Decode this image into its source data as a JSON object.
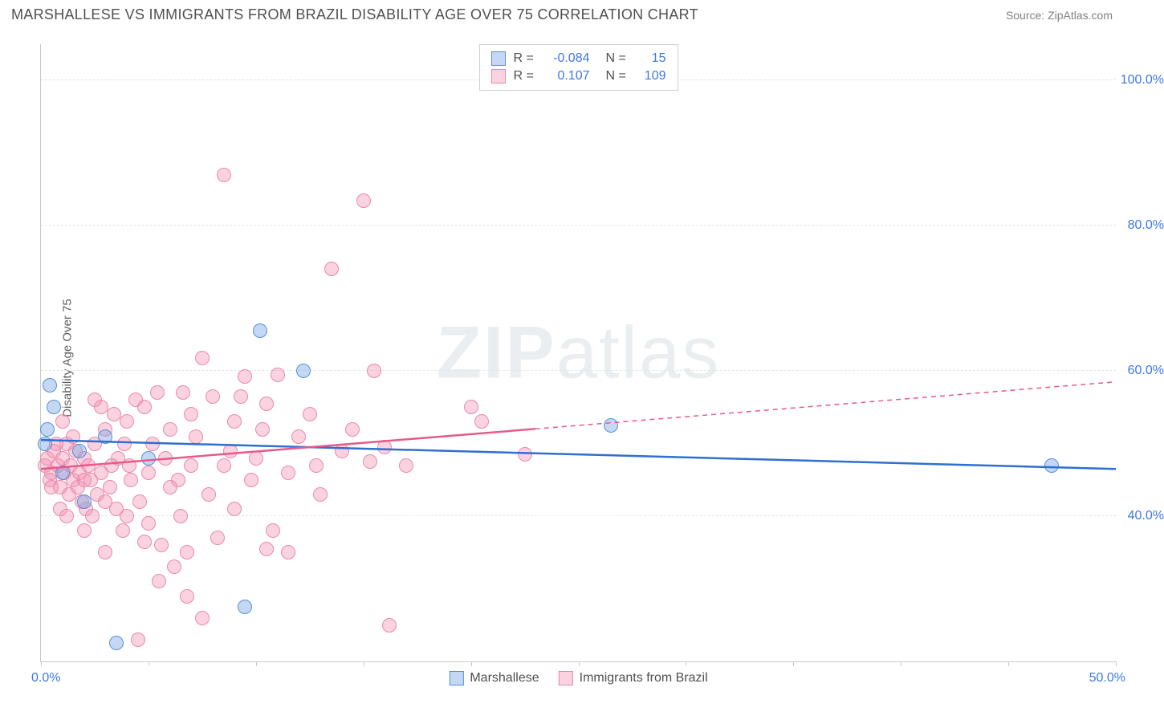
{
  "title": "MARSHALLESE VS IMMIGRANTS FROM BRAZIL DISABILITY AGE OVER 75 CORRELATION CHART",
  "source": "Source: ZipAtlas.com",
  "ylabel": "Disability Age Over 75",
  "watermark_bold": "ZIP",
  "watermark_light": "atlas",
  "xaxis": {
    "min_label": "0.0%",
    "max_label": "50.0%",
    "min": 0,
    "max": 50,
    "ticks": [
      0,
      5,
      10,
      15,
      20,
      25,
      30,
      35,
      40,
      45,
      50
    ]
  },
  "yaxis": {
    "min": 20,
    "max": 105,
    "gridlines": [
      {
        "v": 40,
        "label": "40.0%"
      },
      {
        "v": 60,
        "label": "60.0%"
      },
      {
        "v": 80,
        "label": "80.0%"
      },
      {
        "v": 100,
        "label": "100.0%"
      }
    ]
  },
  "series": [
    {
      "name": "Marshallese",
      "fill": "rgba(124,169,230,0.45)",
      "stroke": "#5a8fd6",
      "line_color": "#2f6fd0",
      "r_value": "-0.084",
      "n_value": "15",
      "marker_r": 9,
      "trend": {
        "x1_data": 0,
        "y1": 50.5,
        "x2_data": 50,
        "y2": 46.5,
        "x_solid_end": 50
      },
      "points": [
        {
          "x": 0.4,
          "y": 58
        },
        {
          "x": 0.6,
          "y": 55
        },
        {
          "x": 0.2,
          "y": 50
        },
        {
          "x": 1.8,
          "y": 49
        },
        {
          "x": 10.2,
          "y": 65.5
        },
        {
          "x": 12.2,
          "y": 60.0
        },
        {
          "x": 3.5,
          "y": 22.5
        },
        {
          "x": 9.5,
          "y": 27.5
        },
        {
          "x": 26.5,
          "y": 52.5
        },
        {
          "x": 47.0,
          "y": 47.0
        },
        {
          "x": 1.0,
          "y": 46
        },
        {
          "x": 2.0,
          "y": 42
        },
        {
          "x": 0.3,
          "y": 52
        },
        {
          "x": 3.0,
          "y": 51
        },
        {
          "x": 5.0,
          "y": 48
        }
      ]
    },
    {
      "name": "Immigrants from Brazil",
      "fill": "rgba(244,143,177,0.40)",
      "stroke": "#e88aa8",
      "line_color": "#e65a8a",
      "r_value": "0.107",
      "n_value": "109",
      "marker_r": 9,
      "trend": {
        "x1_data": 0,
        "y1": 46.5,
        "x2_data": 50,
        "y2": 58.5,
        "x_solid_end": 23
      },
      "points": [
        {
          "x": 0.2,
          "y": 47
        },
        {
          "x": 0.3,
          "y": 48
        },
        {
          "x": 0.5,
          "y": 46
        },
        {
          "x": 0.6,
          "y": 49
        },
        {
          "x": 0.4,
          "y": 45
        },
        {
          "x": 0.8,
          "y": 47
        },
        {
          "x": 0.9,
          "y": 44
        },
        {
          "x": 1.0,
          "y": 48
        },
        {
          "x": 1.1,
          "y": 46
        },
        {
          "x": 1.2,
          "y": 50
        },
        {
          "x": 1.3,
          "y": 43
        },
        {
          "x": 1.4,
          "y": 47
        },
        {
          "x": 1.5,
          "y": 45
        },
        {
          "x": 1.6,
          "y": 49
        },
        {
          "x": 1.7,
          "y": 44
        },
        {
          "x": 1.8,
          "y": 46
        },
        {
          "x": 1.9,
          "y": 42
        },
        {
          "x": 2.0,
          "y": 48
        },
        {
          "x": 2.1,
          "y": 41
        },
        {
          "x": 2.2,
          "y": 47
        },
        {
          "x": 2.3,
          "y": 45
        },
        {
          "x": 2.4,
          "y": 40
        },
        {
          "x": 2.5,
          "y": 50
        },
        {
          "x": 2.6,
          "y": 43
        },
        {
          "x": 2.8,
          "y": 46
        },
        {
          "x": 3.0,
          "y": 52
        },
        {
          "x": 3.2,
          "y": 44
        },
        {
          "x": 3.4,
          "y": 54
        },
        {
          "x": 3.5,
          "y": 41
        },
        {
          "x": 3.6,
          "y": 48
        },
        {
          "x": 3.8,
          "y": 38
        },
        {
          "x": 4.0,
          "y": 53
        },
        {
          "x": 4.2,
          "y": 45
        },
        {
          "x": 4.4,
          "y": 56
        },
        {
          "x": 4.6,
          "y": 42
        },
        {
          "x": 4.8,
          "y": 55
        },
        {
          "x": 5.0,
          "y": 39
        },
        {
          "x": 5.2,
          "y": 50
        },
        {
          "x": 5.4,
          "y": 57
        },
        {
          "x": 5.6,
          "y": 36
        },
        {
          "x": 5.8,
          "y": 48
        },
        {
          "x": 6.0,
          "y": 52
        },
        {
          "x": 6.2,
          "y": 33
        },
        {
          "x": 6.4,
          "y": 45
        },
        {
          "x": 6.6,
          "y": 57
        },
        {
          "x": 6.8,
          "y": 29
        },
        {
          "x": 7.0,
          "y": 47
        },
        {
          "x": 7.2,
          "y": 51
        },
        {
          "x": 7.5,
          "y": 61.8
        },
        {
          "x": 7.8,
          "y": 43
        },
        {
          "x": 8.0,
          "y": 56.5
        },
        {
          "x": 8.2,
          "y": 37
        },
        {
          "x": 8.5,
          "y": 87.0
        },
        {
          "x": 8.8,
          "y": 49
        },
        {
          "x": 9.0,
          "y": 53
        },
        {
          "x": 9.3,
          "y": 56.5
        },
        {
          "x": 9.5,
          "y": 59.2
        },
        {
          "x": 9.8,
          "y": 45
        },
        {
          "x": 10.0,
          "y": 48
        },
        {
          "x": 10.3,
          "y": 52
        },
        {
          "x": 10.5,
          "y": 55.5
        },
        {
          "x": 10.8,
          "y": 38
        },
        {
          "x": 11.0,
          "y": 59.5
        },
        {
          "x": 11.5,
          "y": 35
        },
        {
          "x": 12.0,
          "y": 51
        },
        {
          "x": 12.5,
          "y": 54
        },
        {
          "x": 12.8,
          "y": 47
        },
        {
          "x": 13.0,
          "y": 43
        },
        {
          "x": 13.5,
          "y": 74.0
        },
        {
          "x": 14.0,
          "y": 49
        },
        {
          "x": 14.5,
          "y": 52
        },
        {
          "x": 15.0,
          "y": 83.5
        },
        {
          "x": 15.3,
          "y": 47.5
        },
        {
          "x": 15.5,
          "y": 60.0
        },
        {
          "x": 16.0,
          "y": 49.5
        },
        {
          "x": 16.2,
          "y": 25.0
        },
        {
          "x": 17.0,
          "y": 47
        },
        {
          "x": 20.0,
          "y": 55
        },
        {
          "x": 20.5,
          "y": 53
        },
        {
          "x": 22.5,
          "y": 48.5
        },
        {
          "x": 4.5,
          "y": 23
        },
        {
          "x": 3.0,
          "y": 35
        },
        {
          "x": 5.5,
          "y": 31
        },
        {
          "x": 6.5,
          "y": 40
        },
        {
          "x": 7.5,
          "y": 26
        },
        {
          "x": 2.0,
          "y": 38
        },
        {
          "x": 1.5,
          "y": 51
        },
        {
          "x": 0.7,
          "y": 50
        },
        {
          "x": 2.8,
          "y": 55
        },
        {
          "x": 3.9,
          "y": 50
        },
        {
          "x": 4.1,
          "y": 47
        },
        {
          "x": 1.0,
          "y": 53
        },
        {
          "x": 2.5,
          "y": 56
        },
        {
          "x": 3.3,
          "y": 47
        },
        {
          "x": 0.5,
          "y": 44
        },
        {
          "x": 1.2,
          "y": 40
        },
        {
          "x": 0.9,
          "y": 41
        },
        {
          "x": 6.0,
          "y": 44
        },
        {
          "x": 7.0,
          "y": 54
        },
        {
          "x": 8.5,
          "y": 47
        },
        {
          "x": 9.0,
          "y": 41
        },
        {
          "x": 11.5,
          "y": 46
        },
        {
          "x": 4.0,
          "y": 40
        },
        {
          "x": 5.0,
          "y": 46
        },
        {
          "x": 2.0,
          "y": 45
        },
        {
          "x": 3.0,
          "y": 42
        },
        {
          "x": 4.8,
          "y": 36.5
        },
        {
          "x": 6.8,
          "y": 35
        },
        {
          "x": 10.5,
          "y": 35.5
        }
      ]
    }
  ],
  "legend": [
    {
      "label": "Marshallese",
      "fill": "rgba(124,169,230,0.45)",
      "stroke": "#5a8fd6"
    },
    {
      "label": "Immigrants from Brazil",
      "fill": "rgba(244,143,177,0.40)",
      "stroke": "#e88aa8"
    }
  ]
}
